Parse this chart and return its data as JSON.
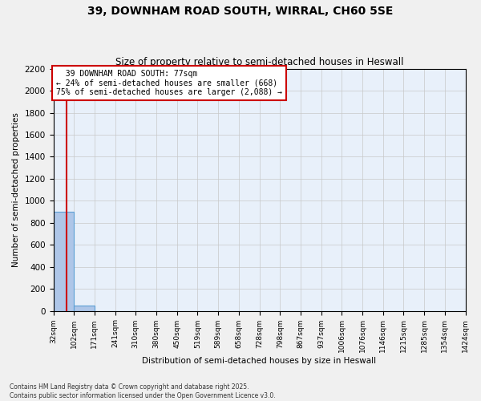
{
  "title": "39, DOWNHAM ROAD SOUTH, WIRRAL, CH60 5SE",
  "subtitle": "Size of property relative to semi-detached houses in Heswall",
  "xlabel": "Distribution of semi-detached houses by size in Heswall",
  "ylabel": "Number of semi-detached properties",
  "property_size": 77,
  "property_label": "39 DOWNHAM ROAD SOUTH: 77sqm",
  "pct_smaller": 24,
  "count_smaller": 668,
  "pct_larger": 75,
  "count_larger": 2088,
  "bin_edges": [
    32,
    102,
    171,
    241,
    310,
    380,
    450,
    519,
    589,
    658,
    728,
    798,
    867,
    937,
    1006,
    1076,
    1146,
    1215,
    1285,
    1354,
    1424
  ],
  "bin_labels": [
    "32sqm",
    "102sqm",
    "171sqm",
    "241sqm",
    "310sqm",
    "380sqm",
    "450sqm",
    "519sqm",
    "589sqm",
    "658sqm",
    "728sqm",
    "798sqm",
    "867sqm",
    "937sqm",
    "1006sqm",
    "1076sqm",
    "1146sqm",
    "1215sqm",
    "1285sqm",
    "1354sqm",
    "1424sqm"
  ],
  "bar_heights": [
    900,
    50,
    0,
    0,
    0,
    0,
    0,
    0,
    0,
    0,
    0,
    0,
    0,
    0,
    0,
    0,
    0,
    0,
    0,
    0
  ],
  "bar_color": "#aec6e8",
  "bar_edge_color": "#5a9fd4",
  "grid_color": "#c8c8c8",
  "background_color": "#e8f0fa",
  "fig_background_color": "#f0f0f0",
  "vline_color": "#cc0000",
  "vline_x": 77,
  "annotation_border_color": "#cc0000",
  "ylim": [
    0,
    2200
  ],
  "footnote": "Contains HM Land Registry data © Crown copyright and database right 2025.\nContains public sector information licensed under the Open Government Licence v3.0."
}
